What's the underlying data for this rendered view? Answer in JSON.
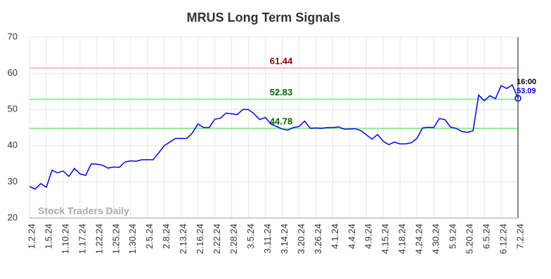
{
  "chart_data": {
    "type": "line",
    "title": "MRUS Long Term Signals",
    "categories": [
      "1.2.24",
      null,
      null,
      "1.5.24",
      null,
      null,
      "1.10.24",
      null,
      null,
      "1.17.24",
      null,
      null,
      "1.22.24",
      null,
      null,
      "1.25.24",
      null,
      null,
      "1.30.24",
      null,
      null,
      "2.5.24",
      null,
      null,
      "2.8.24",
      null,
      null,
      "2.13.24",
      null,
      null,
      "2.16.24",
      null,
      null,
      "2.22.24",
      null,
      null,
      "2.28.24",
      null,
      null,
      "3.5.24",
      null,
      null,
      "3.11.24",
      null,
      null,
      "3.14.24",
      null,
      null,
      "3.20.24",
      null,
      null,
      "3.26.24",
      null,
      null,
      "4.1.24",
      null,
      null,
      "4.4.24",
      null,
      null,
      "4.9.24",
      null,
      null,
      "4.15.24",
      null,
      null,
      "4.18.24",
      null,
      null,
      "4.24.24",
      null,
      null,
      "4.30.24",
      null,
      null,
      "5.9.24",
      null,
      null,
      "5.20.24",
      null,
      null,
      "6.5.24",
      null,
      null,
      "6.12.24",
      null,
      null,
      "7.2.24"
    ],
    "series": [
      {
        "color": "#0000ee",
        "values": [
          28.7,
          28.0,
          29.5,
          28.5,
          33.2,
          32.5,
          33.0,
          31.5,
          33.7,
          32.2,
          31.8,
          35.0,
          34.9,
          34.6,
          33.8,
          34.1,
          34.0,
          35.5,
          35.8,
          35.7,
          36.1,
          36.1,
          36.1,
          38.0,
          40.0,
          41.0,
          42.0,
          42.0,
          42.0,
          43.5,
          46.0,
          45.0,
          45.0,
          47.3,
          47.6,
          49.0,
          48.8,
          48.6,
          50.0,
          50.0,
          48.8,
          47.2,
          47.8,
          46.0,
          45.3,
          44.6,
          44.3,
          45.0,
          45.3,
          46.8,
          44.8,
          44.9,
          44.8,
          45.0,
          45.0,
          45.2,
          44.6,
          44.6,
          44.7,
          44.2,
          43.0,
          41.8,
          43.1,
          41.2,
          40.3,
          41.0,
          40.5,
          40.5,
          40.8,
          42.0,
          44.9,
          45.1,
          45.0,
          47.5,
          47.2,
          45.1,
          44.8,
          43.9,
          43.7,
          44.1,
          54.0,
          52.4,
          53.8,
          53.0,
          56.6,
          55.8,
          56.8,
          53.09
        ]
      }
    ],
    "reference_lines": [
      {
        "value": 61.44,
        "color": "#ffbbbb",
        "label_color": "#8b0000"
      },
      {
        "value": 52.83,
        "color": "#90ee90",
        "label_color": "#006400"
      },
      {
        "value": 44.78,
        "color": "#90ee90",
        "label_color": "#006400"
      }
    ],
    "last_time": "16:00",
    "watermark": "Stock Traders Daily",
    "ylim": [
      20,
      70
    ],
    "yticks": [
      20,
      30,
      40,
      50,
      60,
      70
    ],
    "grid": true
  }
}
